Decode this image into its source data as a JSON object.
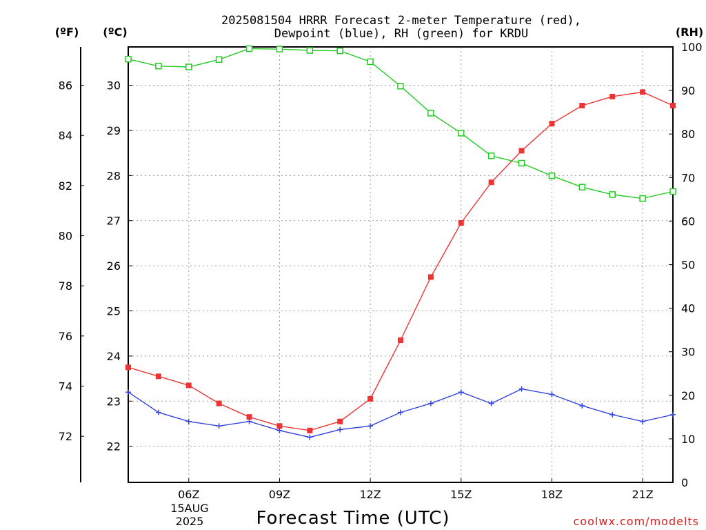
{
  "chart_data": {
    "type": "line",
    "title_line1": "2025081504 HRRR Forecast 2-meter Temperature (red),",
    "title_line2": "Dewpoint (blue), RH (green) for KRDU",
    "xlabel": "Forecast Time (UTC)",
    "credit": "coolwx.com/modelts",
    "axis_units": {
      "fahrenheit": "(ºF)",
      "celsius": "(ºC)",
      "rh": "(RH)"
    },
    "date_labels": [
      "15AUG",
      "2025"
    ],
    "x": [
      4,
      5,
      6,
      7,
      8,
      9,
      10,
      11,
      12,
      13,
      14,
      15,
      16,
      17,
      18,
      19,
      20,
      21,
      22
    ],
    "xlim": [
      4,
      22
    ],
    "x_ticks": [
      {
        "x": 6,
        "label": "06Z"
      },
      {
        "x": 9,
        "label": "09Z"
      },
      {
        "x": 12,
        "label": "12Z"
      },
      {
        "x": 15,
        "label": "15Z"
      },
      {
        "x": 18,
        "label": "18Z"
      },
      {
        "x": 21,
        "label": "21Z"
      }
    ],
    "ylim_celsius": [
      21.2,
      30.85
    ],
    "y_ticks_celsius": [
      22,
      23,
      24,
      25,
      26,
      27,
      28,
      29,
      30
    ],
    "y_ticks_fahrenheit": [
      72,
      74,
      76,
      78,
      80,
      82,
      84,
      86
    ],
    "ylim_rh": [
      0,
      100
    ],
    "y_ticks_rh": [
      0,
      10,
      20,
      30,
      40,
      50,
      60,
      70,
      80,
      90,
      100
    ],
    "grid": true,
    "series": [
      {
        "axis": "celsius",
        "color": "#ee3333",
        "marker": "filled-square",
        "values": [
          23.75,
          23.55,
          23.35,
          22.95,
          22.65,
          22.45,
          22.35,
          22.55,
          23.05,
          24.35,
          25.75,
          26.95,
          27.85,
          28.55,
          29.15,
          29.55,
          29.75,
          29.85,
          29.55
        ]
      },
      {
        "axis": "celsius",
        "color": "#3344dd",
        "marker": "plus",
        "values": [
          23.2,
          22.75,
          22.55,
          22.45,
          22.55,
          22.35,
          22.2,
          22.37,
          22.45,
          22.75,
          22.95,
          23.2,
          22.95,
          23.27,
          23.15,
          22.9,
          22.7,
          22.55,
          22.7
        ]
      },
      {
        "axis": "rh",
        "color": "#22cc22",
        "marker": "open-square",
        "values": [
          97.2,
          95.6,
          95.4,
          97.1,
          99.6,
          99.5,
          99.2,
          99.1,
          96.6,
          91.0,
          84.8,
          80.2,
          75.0,
          73.3,
          70.4,
          67.8,
          66.1,
          65.2,
          66.8
        ]
      }
    ]
  }
}
